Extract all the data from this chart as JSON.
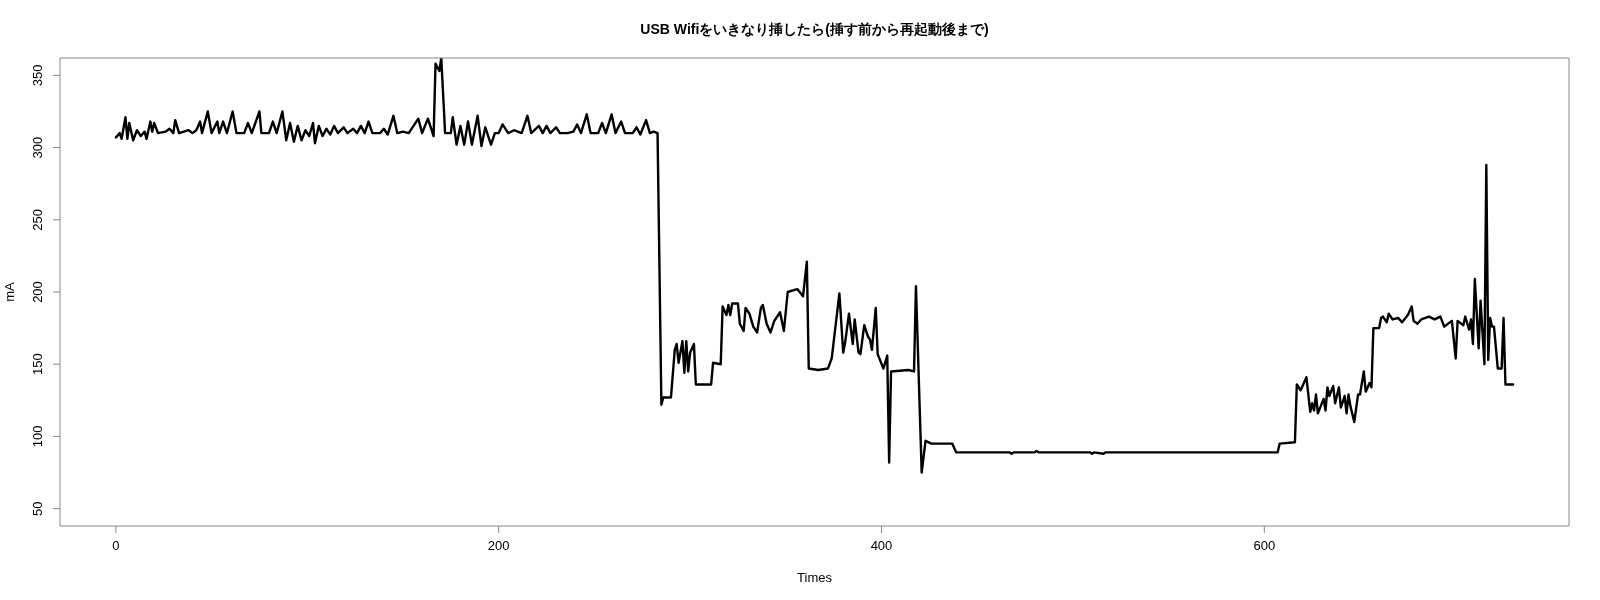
{
  "chart_data": {
    "type": "line",
    "title": "USB Wifiをいきなり挿したら(挿す前から再起動後まで)",
    "xlabel": "Times",
    "ylabel": "mA",
    "x": [
      0,
      2,
      3,
      5,
      6,
      7,
      9,
      11,
      13,
      15,
      16,
      18,
      19,
      20,
      22,
      26,
      28,
      30,
      31,
      33,
      38,
      40,
      42,
      44,
      45,
      48,
      50,
      53,
      54,
      56,
      58,
      61,
      63,
      67,
      69,
      71,
      75,
      76,
      80,
      82,
      84,
      87,
      89,
      91,
      93,
      95,
      97,
      99,
      101,
      103,
      104,
      106,
      108,
      110,
      112,
      114,
      116,
      119,
      121,
      124,
      126,
      128,
      130,
      132,
      134,
      138,
      140,
      142,
      145,
      147,
      150,
      153,
      158,
      160,
      163,
      166,
      167,
      169,
      170,
      172,
      175,
      176,
      178,
      180,
      182,
      184,
      186,
      189,
      191,
      193,
      196,
      198,
      200,
      202,
      205,
      208,
      212,
      215,
      217,
      221,
      223,
      225,
      227,
      230,
      232,
      236,
      239,
      241,
      243,
      246,
      248,
      252,
      254,
      256,
      259,
      261,
      264,
      266,
      270,
      272,
      274,
      277,
      279,
      281,
      283,
      285,
      286,
      290,
      292,
      293,
      294,
      296,
      297,
      298,
      299,
      300,
      302,
      303,
      311,
      312,
      316,
      317,
      319,
      320,
      321,
      322,
      325,
      326,
      328,
      329,
      331,
      333,
      335,
      337,
      338,
      340,
      342,
      344,
      345,
      347,
      349,
      351,
      356,
      359,
      361,
      362,
      367,
      372,
      374,
      378,
      380,
      381,
      383,
      385,
      386,
      388,
      389,
      391,
      393,
      394,
      395,
      397,
      398,
      401,
      403,
      404,
      405,
      414,
      417,
      418,
      421,
      423,
      426,
      437,
      439,
      467,
      468,
      469,
      480,
      481,
      482,
      509,
      510,
      511,
      516,
      517,
      607,
      608,
      616,
      617,
      619,
      622,
      624,
      625,
      626,
      627,
      628,
      631,
      632,
      633,
      634,
      636,
      637,
      639,
      640,
      642,
      643,
      644,
      645,
      647,
      649,
      650,
      652,
      653,
      655,
      656,
      657,
      660,
      661,
      662,
      664,
      665,
      667,
      670,
      672,
      675,
      677,
      678,
      680,
      682,
      686,
      689,
      692,
      694,
      698,
      700,
      701,
      704,
      705,
      707,
      708,
      709,
      710,
      712,
      713,
      715,
      716,
      717,
      718,
      719,
      720,
      722,
      724,
      725,
      726,
      730
    ],
    "series": [
      {
        "color": "#000000",
        "values": [
          307,
          310,
          306,
          321,
          306,
          317,
          305,
          312,
          308,
          311,
          306,
          318,
          311,
          317,
          310,
          311,
          313,
          310,
          319,
          310,
          312,
          310,
          312,
          318,
          310,
          325,
          310,
          318,
          310,
          318,
          310,
          325,
          310,
          310,
          317,
          310,
          325,
          310,
          310,
          318,
          310,
          325,
          305,
          317,
          304,
          315,
          305,
          312,
          308,
          317,
          303,
          315,
          308,
          313,
          309,
          315,
          310,
          314,
          310,
          313,
          310,
          315,
          310,
          318,
          310,
          310,
          313,
          309,
          322,
          310,
          311,
          310,
          320,
          310,
          320,
          308,
          358,
          353,
          362,
          310,
          310,
          321,
          302,
          315,
          302,
          318,
          302,
          322,
          301,
          314,
          302,
          310,
          310,
          316,
          310,
          312,
          310,
          322,
          310,
          315,
          310,
          315,
          310,
          314,
          310,
          310,
          311,
          316,
          310,
          323,
          310,
          310,
          317,
          310,
          323,
          310,
          318,
          310,
          310,
          314,
          309,
          319,
          310,
          311,
          310,
          122,
          127,
          127,
          160,
          164,
          151,
          166,
          144,
          166,
          145,
          158,
          164,
          136,
          136,
          151,
          150,
          190,
          184,
          191,
          184,
          192,
          192,
          178,
          173,
          189,
          185,
          176,
          172,
          189,
          191,
          178,
          172,
          180,
          182,
          186,
          173,
          200,
          202,
          197,
          221,
          147,
          146,
          147,
          154,
          199,
          158,
          165,
          185,
          164,
          181,
          158,
          157,
          177,
          169,
          167,
          160,
          189,
          157,
          147,
          156,
          82,
          145,
          146,
          145,
          204,
          75,
          97,
          95,
          95,
          89,
          89,
          88,
          89,
          89,
          90,
          89,
          89,
          88,
          89,
          88,
          89,
          89,
          95,
          96,
          136,
          132,
          141,
          117,
          123,
          118,
          129,
          116,
          126,
          118,
          134,
          128,
          135,
          123,
          134,
          120,
          128,
          116,
          129,
          121,
          110,
          129,
          129,
          145,
          131,
          137,
          134,
          175,
          175,
          182,
          183,
          179,
          185,
          181,
          182,
          179,
          184,
          190,
          180,
          178,
          181,
          183,
          181,
          183,
          176,
          180,
          154,
          180,
          177,
          183,
          174,
          181,
          164,
          209,
          161,
          194,
          150,
          288,
          153,
          182,
          176,
          176,
          147,
          147,
          182,
          136,
          136
        ]
      }
    ],
    "xlim": [
      -29.2,
      759.2
    ],
    "xticks": [
      0,
      200,
      400,
      600
    ],
    "ylim": [
      38,
      362
    ],
    "yticks": [
      50,
      100,
      150,
      200,
      250,
      300,
      350
    ],
    "line_style": "solid"
  }
}
